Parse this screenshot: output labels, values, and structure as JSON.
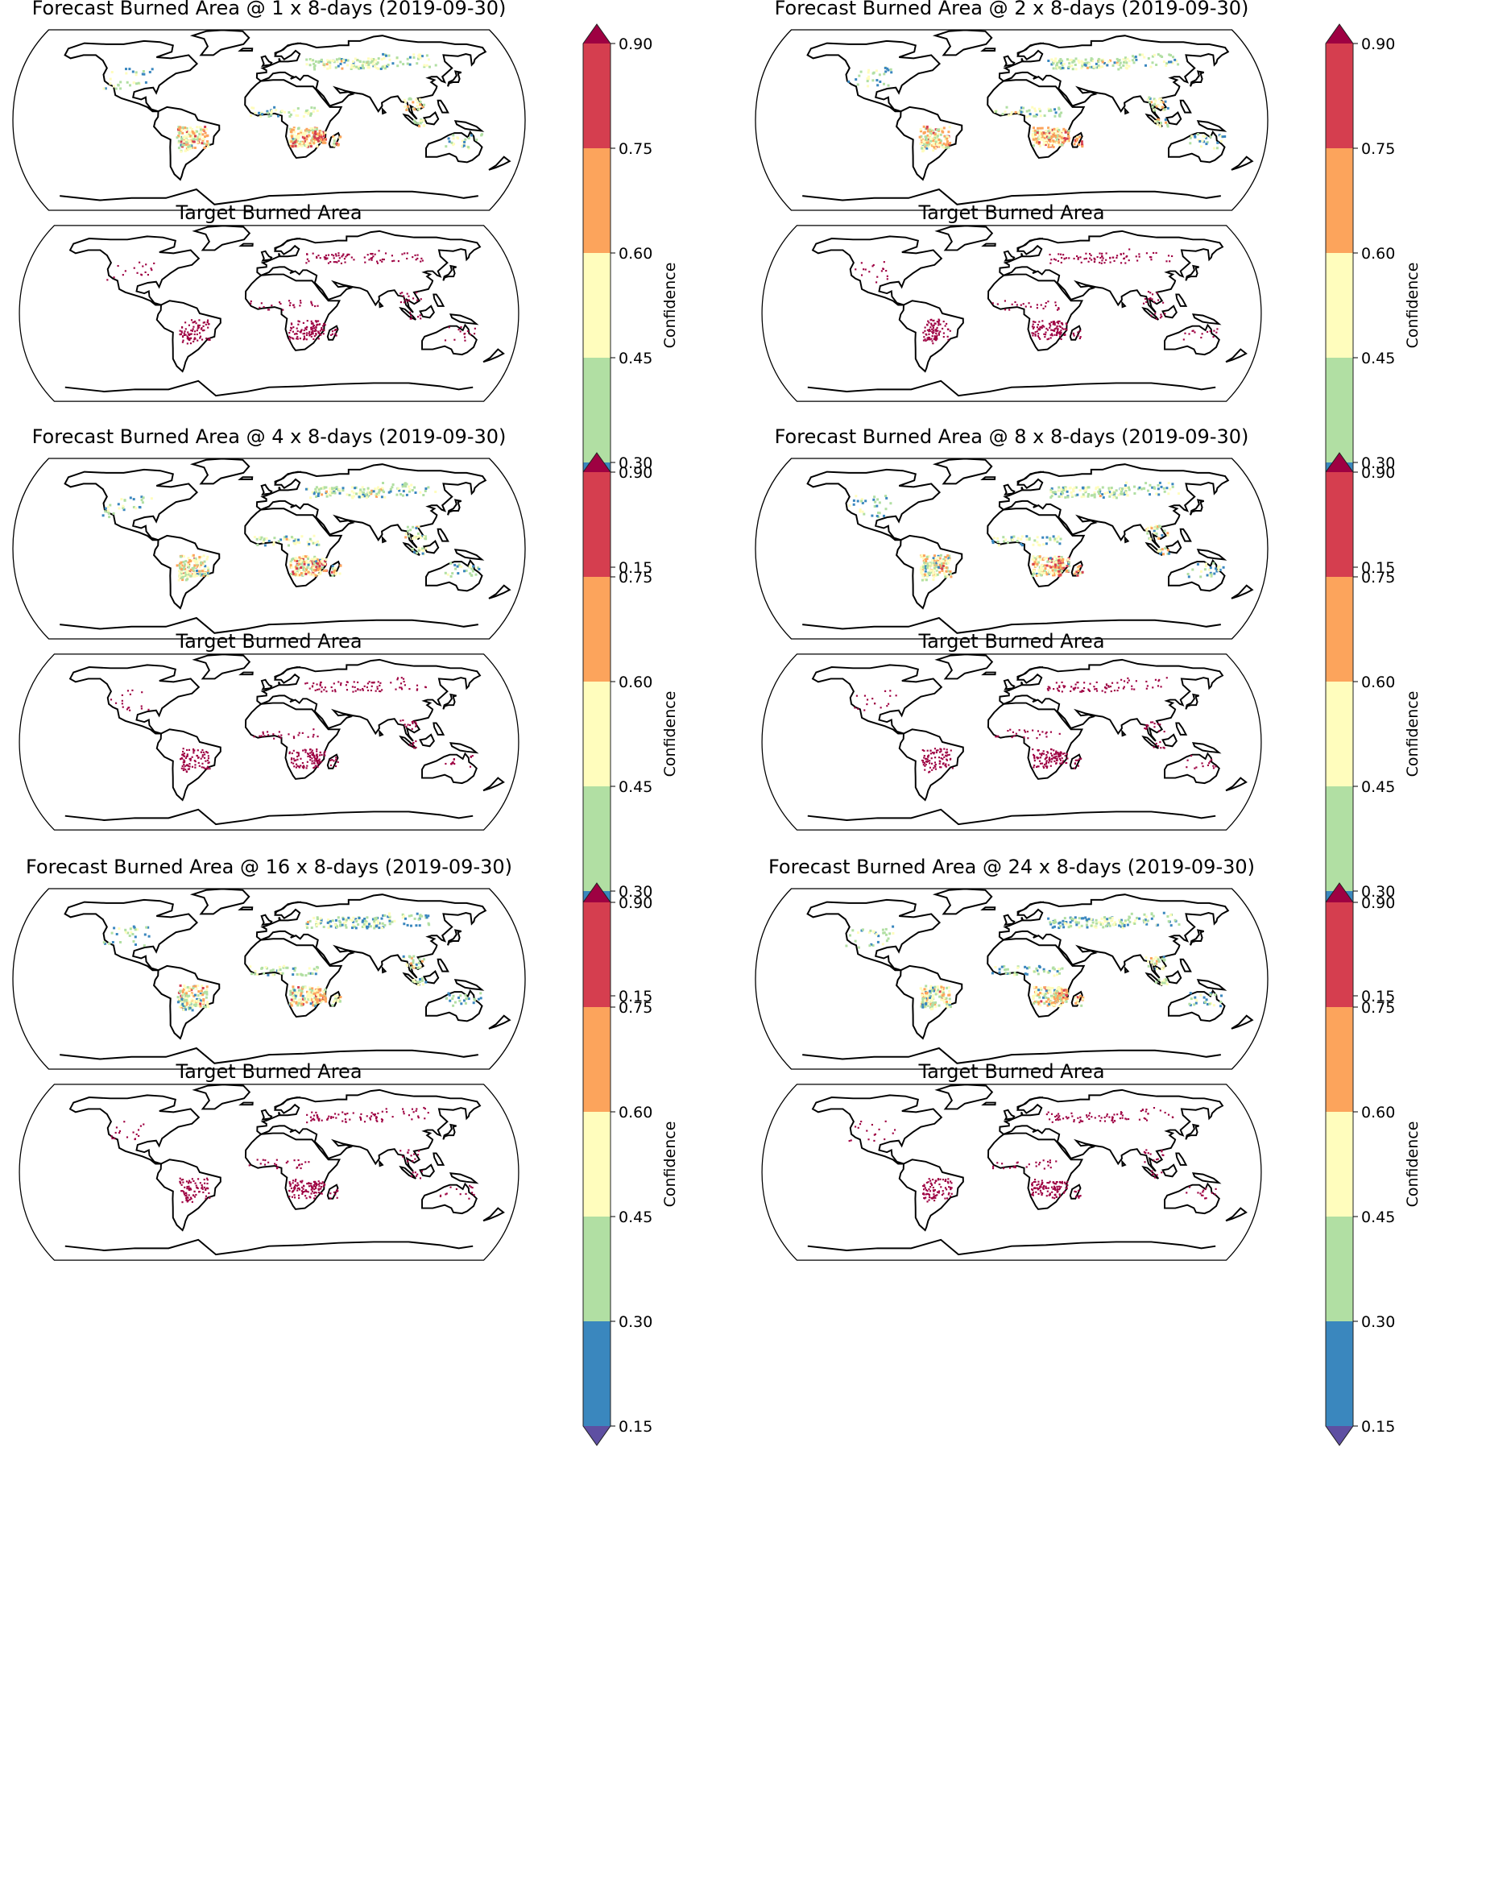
{
  "figure": {
    "panels": [
      {
        "forecast_title": "Forecast Burned Area @ 1 x 8-days (2019-09-30)",
        "target_title": "Target Burned Area"
      },
      {
        "forecast_title": "Forecast Burned Area @ 2 x 8-days (2019-09-30)",
        "target_title": "Target Burned Area"
      },
      {
        "forecast_title": "Forecast Burned Area @ 4 x 8-days (2019-09-30)",
        "target_title": "Target Burned Area"
      },
      {
        "forecast_title": "Forecast Burned Area @ 8 x 8-days (2019-09-30)",
        "target_title": "Target Burned Area"
      },
      {
        "forecast_title": "Forecast Burned Area @ 16 x 8-days (2019-09-30)",
        "target_title": "Target Burned Area"
      },
      {
        "forecast_title": "Forecast Burned Area @ 24 x 8-days (2019-09-30)",
        "target_title": "Target Burned Area"
      }
    ]
  },
  "chart_data": {
    "type": "heatmap",
    "description_level": "12 global burned-area maps (Robinson projection): 6 forecast maps coloured by confidence, 6 target maps showing observed burned pixels",
    "colorbar": {
      "label": "Confidence",
      "ticks": [
        "0.15",
        "0.30",
        "0.45",
        "0.60",
        "0.75",
        "0.90"
      ],
      "bins": [
        {
          "from": 0.15,
          "to": 0.3,
          "color": "#3a87be"
        },
        {
          "from": 0.3,
          "to": 0.45,
          "color": "#b1dfa3"
        },
        {
          "from": 0.45,
          "to": 0.6,
          "color": "#fffdbd"
        },
        {
          "from": 0.6,
          "to": 0.75,
          "color": "#fca45c"
        },
        {
          "from": 0.75,
          "to": 0.9,
          "color": "#d53e4f"
        }
      ],
      "extend_min_color": "#5e4fa2",
      "extend_max_color": "#9e0142",
      "target_color": "#9e0142"
    },
    "forecast_lead_times": [
      1,
      2,
      4,
      8,
      16,
      24
    ],
    "date": "2019-09-30"
  }
}
